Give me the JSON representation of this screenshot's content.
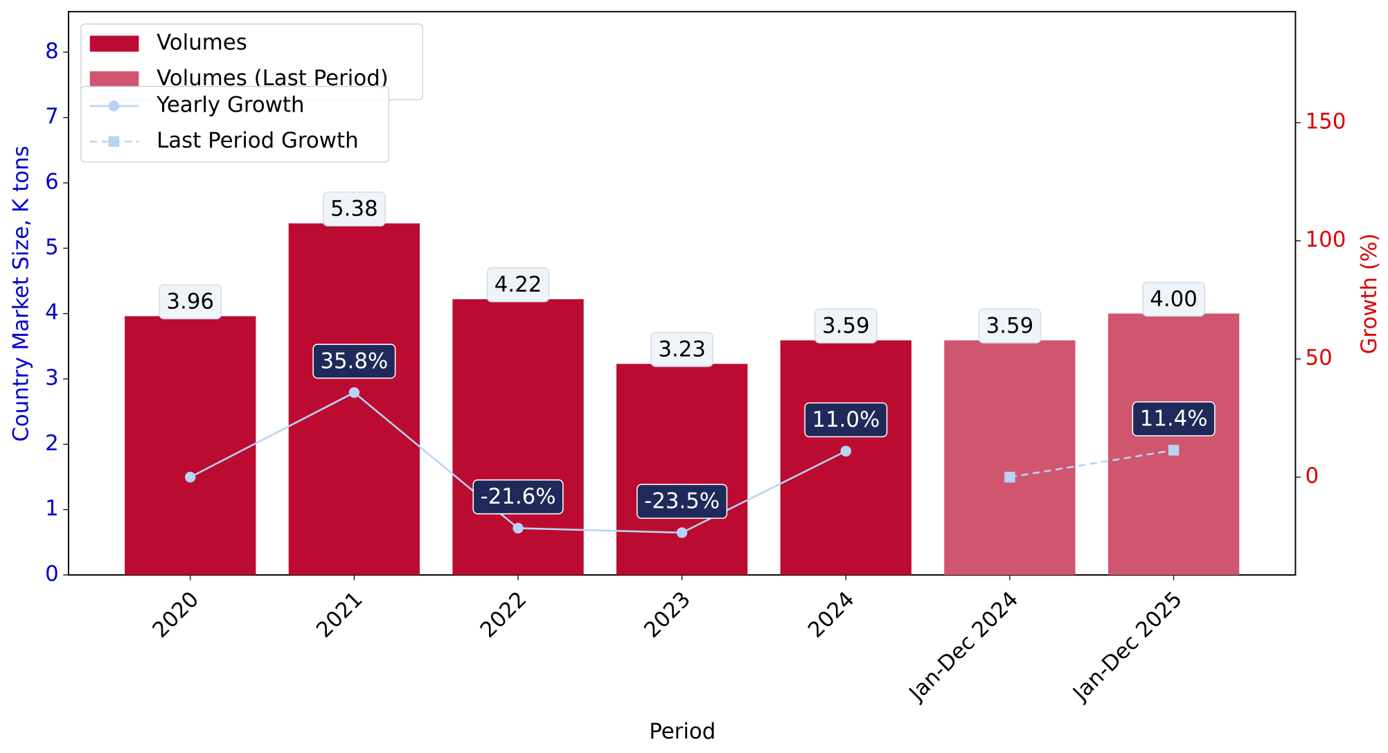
{
  "chart_data": {
    "type": "bar",
    "xlabel": "Period",
    "ylabel": "Country Market Size, K tons",
    "y2label": "Growth (%)",
    "categories": [
      "2020",
      "2021",
      "2022",
      "2023",
      "2024",
      "Jan-Dec 2024",
      "Jan-Dec 2025"
    ],
    "series": [
      {
        "name": "Volumes",
        "type": "bar",
        "color": "#bc0b31",
        "values": [
          3.96,
          5.38,
          4.22,
          3.23,
          3.59,
          null,
          null
        ],
        "value_labels": [
          "3.96",
          "5.38",
          "4.22",
          "3.23",
          "3.59",
          null,
          null
        ]
      },
      {
        "name": "Volumes (Last Period)",
        "type": "bar",
        "color": "#d05670",
        "values": [
          null,
          null,
          null,
          null,
          null,
          3.59,
          4.0
        ],
        "value_labels": [
          null,
          null,
          null,
          null,
          null,
          "3.59",
          "4.00"
        ]
      },
      {
        "name": "Yearly Growth",
        "type": "line",
        "axis": "y2",
        "color": "#b7d4f5",
        "marker": "circle",
        "dash": false,
        "values": [
          0,
          35.8,
          -21.6,
          -23.5,
          11.0,
          null,
          null
        ],
        "value_labels": [
          null,
          "35.8%",
          "-21.6%",
          "-23.5%",
          "11.0%",
          null,
          null
        ]
      },
      {
        "name": "Last Period Growth",
        "type": "line",
        "axis": "y2",
        "color": "#b7d4f5",
        "marker": "square",
        "dash": true,
        "values": [
          null,
          null,
          null,
          null,
          null,
          0,
          11.4
        ],
        "value_labels": [
          null,
          null,
          null,
          null,
          null,
          null,
          "11.4%"
        ]
      }
    ],
    "ylim": [
      0,
      8.62
    ],
    "yticks": [
      0,
      1,
      2,
      3,
      4,
      5,
      6,
      7,
      8
    ],
    "y2lim": [
      -41.4,
      197
    ],
    "y2ticks": [
      0,
      50,
      100,
      150
    ],
    "ycolor": "#0000cc",
    "y2color": "#dd0000"
  }
}
